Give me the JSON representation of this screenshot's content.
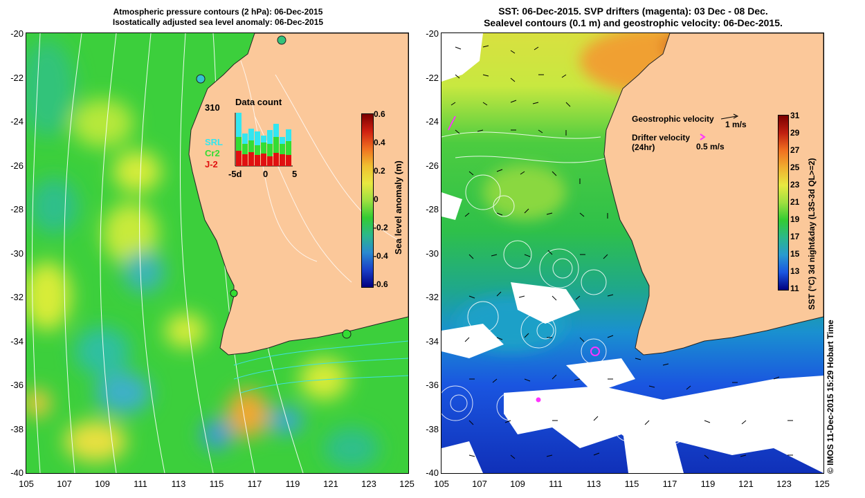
{
  "left_map": {
    "title_line1": "Atmospheric pressure contours (2 hPa): 06-Dec-2015",
    "title_line2": "Isostatically adjusted sea level anomaly: 06-Dec-2015",
    "colorbar_label": "Sea level anomaly (m)",
    "colorbar_ticks": [
      "0.6",
      "0.4",
      "0.2",
      "0",
      "-0.2",
      "-0.4",
      "-0.6"
    ],
    "inset": {
      "title": "Data count",
      "max_label": "310",
      "legend": [
        {
          "label": "SRL",
          "color": "#33e6f0"
        },
        {
          "label": "Cr2",
          "color": "#33dd33"
        },
        {
          "label": "J-2",
          "color": "#e01010"
        }
      ],
      "x_ticks": [
        "-5d",
        "0",
        "5"
      ]
    }
  },
  "right_map": {
    "title_line1": "SST: 06-Dec-2015. SVP drifters (magenta): 03 Dec - 08 Dec.",
    "title_line2": "Sealevel contours (0.1 m) and geostrophic velocity: 06-Dec-2015.",
    "geostrophic_label": "Geostrophic velocity",
    "geostrophic_scale": "1 m/s",
    "drifter_label_line1": "Drifter velocity",
    "drifter_label_line2": "(24hr)",
    "drifter_scale": "0.5 m/s",
    "colorbar_label": "SST (°C) 3d night&day (L3S-3d QL>=2)",
    "colorbar_ticks": [
      "31",
      "29",
      "27",
      "25",
      "23",
      "21",
      "19",
      "17",
      "15",
      "13",
      "11"
    ]
  },
  "axes": {
    "lon_ticks": [
      "105",
      "107",
      "109",
      "111",
      "113",
      "115",
      "117",
      "119",
      "121",
      "123",
      "125"
    ],
    "lat_ticks": [
      "-20",
      "-22",
      "-24",
      "-26",
      "-28",
      "-30",
      "-32",
      "-34",
      "-36",
      "-38",
      "-40"
    ]
  },
  "credit": "© IMOS 11-Dec-2015 15:29 Hobart Time",
  "colors": {
    "land": "#fbc89a",
    "ocean_green": "#3ccf3c",
    "sst_cold": "#1a55e0",
    "contour": "#ffffff",
    "drifter": "#ff33ff"
  }
}
